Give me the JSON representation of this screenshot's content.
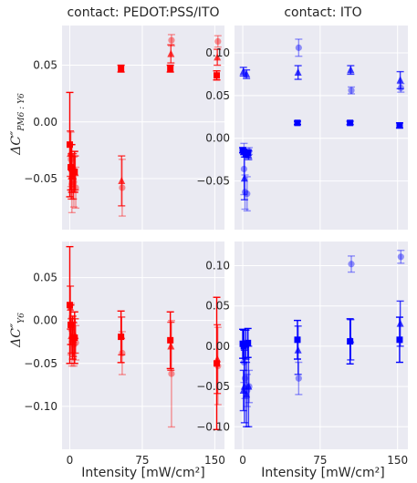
{
  "figure": {
    "col_titles": [
      "contact: PEDOT:PSS/ITO",
      "contact: ITO"
    ],
    "xlabel": "Intensity [mW/cm²]",
    "ylabels": [
      {
        "main": "ΔC″",
        "sub": "PM6 : Y6"
      },
      {
        "main": "ΔC″",
        "sub": "Y6"
      }
    ]
  },
  "chart_data": [
    {
      "type": "scatter",
      "title": "contact: PEDOT:PSS/ITO",
      "ylabel": "ΔC″ PM6:Y6",
      "xlabel": "",
      "color": "#ff0000",
      "xlim": [
        -8,
        160
      ],
      "ylim": [
        -0.095,
        0.085
      ],
      "xticks": [
        0,
        75,
        150
      ],
      "yticks": [
        -0.05,
        0.0,
        0.05
      ],
      "ytick_labels": [
        "−0.05",
        "0.00",
        "0.05"
      ],
      "grid": true,
      "series": [
        {
          "marker": "square",
          "alpha": 1.0,
          "points": [
            {
              "x": 0,
              "y": -0.02,
              "err": 0.046
            },
            {
              "x": 1,
              "y": -0.04,
              "err": 0.02
            },
            {
              "x": 2,
              "y": -0.041,
              "err": 0.021
            },
            {
              "x": 5,
              "y": -0.044,
              "err": 0.018
            },
            {
              "x": 53,
              "y": 0.047,
              "err": 0.003
            },
            {
              "x": 104,
              "y": 0.047,
              "err": 0.003
            },
            {
              "x": 152,
              "y": 0.041,
              "err": 0.004
            }
          ]
        },
        {
          "marker": "triangle",
          "alpha": 0.75,
          "points": [
            {
              "x": 0,
              "y": -0.028,
              "err": 0.02
            },
            {
              "x": 1,
              "y": -0.048,
              "err": 0.02
            },
            {
              "x": 3,
              "y": -0.048,
              "err": 0.02
            },
            {
              "x": 5,
              "y": -0.045,
              "err": 0.015
            },
            {
              "x": 53,
              "y": -0.052,
              "err": 0.022
            },
            {
              "x": 104,
              "y": 0.06,
              "err": 0.008
            },
            {
              "x": 152,
              "y": 0.057,
              "err": 0.007
            }
          ]
        },
        {
          "marker": "circle",
          "alpha": 0.4,
          "points": [
            {
              "x": 0,
              "y": -0.033,
              "err": 0.024
            },
            {
              "x": 1,
              "y": -0.055,
              "err": 0.025
            },
            {
              "x": 3,
              "y": -0.053,
              "err": 0.022
            },
            {
              "x": 5,
              "y": -0.058,
              "err": 0.018
            },
            {
              "x": 53,
              "y": -0.058,
              "err": 0.025
            },
            {
              "x": 104,
              "y": 0.072,
              "err": 0.005
            },
            {
              "x": 152,
              "y": 0.071,
              "err": 0.005
            }
          ]
        }
      ]
    },
    {
      "type": "scatter",
      "title": "contact: ITO",
      "ylabel": "",
      "xlabel": "",
      "color": "#0000ff",
      "xlim": [
        -8,
        160
      ],
      "ylim": [
        -0.107,
        0.132
      ],
      "xticks": [
        0,
        75,
        150
      ],
      "yticks": [
        -0.05,
        0.0,
        0.05,
        0.1
      ],
      "ytick_labels": [
        "−0.05",
        "0.00",
        "0.05",
        "0.10"
      ],
      "grid": true,
      "series": [
        {
          "marker": "square",
          "alpha": 1.0,
          "points": [
            {
              "x": 0,
              "y": -0.014,
              "err": 0.003
            },
            {
              "x": 1,
              "y": -0.016,
              "err": 0.003
            },
            {
              "x": 3,
              "y": -0.018,
              "err": 0.004
            },
            {
              "x": 5,
              "y": -0.017,
              "err": 0.003
            },
            {
              "x": 53,
              "y": 0.018,
              "err": 0.002
            },
            {
              "x": 104,
              "y": 0.018,
              "err": 0.002
            },
            {
              "x": 152,
              "y": 0.015,
              "err": 0.003
            }
          ]
        },
        {
          "marker": "triangle",
          "alpha": 0.75,
          "points": [
            {
              "x": 0,
              "y": 0.078,
              "err": 0.005
            },
            {
              "x": 1,
              "y": -0.047,
              "err": 0.025
            },
            {
              "x": 3,
              "y": 0.075,
              "err": 0.005
            },
            {
              "x": 5,
              "y": -0.02,
              "err": 0.005
            },
            {
              "x": 53,
              "y": 0.077,
              "err": 0.008
            },
            {
              "x": 104,
              "y": 0.08,
              "err": 0.005
            },
            {
              "x": 152,
              "y": 0.068,
              "err": 0.01
            }
          ]
        },
        {
          "marker": "circle",
          "alpha": 0.4,
          "points": [
            {
              "x": 0,
              "y": -0.036,
              "err": 0.03
            },
            {
              "x": 1,
              "y": -0.063,
              "err": 0.02
            },
            {
              "x": 3,
              "y": -0.065,
              "err": 0.02
            },
            {
              "x": 5,
              "y": -0.015,
              "err": 0.004
            },
            {
              "x": 53,
              "y": 0.106,
              "err": 0.01
            },
            {
              "x": 104,
              "y": 0.056,
              "err": 0.004
            },
            {
              "x": 152,
              "y": 0.059,
              "err": 0.005
            }
          ]
        }
      ]
    },
    {
      "type": "scatter",
      "title": "",
      "ylabel": "ΔC″ Y6",
      "xlabel": "Intensity [mW/cm²]",
      "color": "#ff0000",
      "xlim": [
        -8,
        160
      ],
      "ylim": [
        -0.15,
        0.092
      ],
      "xticks": [
        0,
        75,
        150
      ],
      "yticks": [
        -0.1,
        -0.05,
        0.0,
        0.05
      ],
      "ytick_labels": [
        "−0.10",
        "−0.05",
        "0.00",
        "0.05"
      ],
      "grid": true,
      "series": [
        {
          "marker": "square",
          "alpha": 1.0,
          "points": [
            {
              "x": 0,
              "y": 0.018,
              "err": 0.068
            },
            {
              "x": 1,
              "y": -0.005,
              "err": 0.023
            },
            {
              "x": 3,
              "y": -0.02,
              "err": 0.025
            },
            {
              "x": 5,
              "y": -0.02,
              "err": 0.03
            },
            {
              "x": 53,
              "y": -0.019,
              "err": 0.03
            },
            {
              "x": 104,
              "y": -0.023,
              "err": 0.033
            },
            {
              "x": 152,
              "y": -0.05,
              "err": 0.077
            }
          ]
        },
        {
          "marker": "triangle",
          "alpha": 0.75,
          "points": [
            {
              "x": 0,
              "y": 0.015,
              "err": 0.025
            },
            {
              "x": 1,
              "y": -0.018,
              "err": 0.02
            },
            {
              "x": 3,
              "y": -0.022,
              "err": 0.02
            },
            {
              "x": 5,
              "y": -0.018,
              "err": 0.02
            },
            {
              "x": 53,
              "y": -0.018,
              "err": 0.022
            },
            {
              "x": 104,
              "y": -0.03,
              "err": 0.028
            },
            {
              "x": 152,
              "y": -0.045,
              "err": 0.04
            }
          ]
        },
        {
          "marker": "circle",
          "alpha": 0.4,
          "points": [
            {
              "x": 0,
              "y": -0.01,
              "err": 0.03
            },
            {
              "x": 1,
              "y": -0.025,
              "err": 0.028
            },
            {
              "x": 3,
              "y": -0.028,
              "err": 0.025
            },
            {
              "x": 5,
              "y": -0.026,
              "err": 0.02
            },
            {
              "x": 53,
              "y": -0.038,
              "err": 0.025
            },
            {
              "x": 104,
              "y": -0.062,
              "err": 0.062
            },
            {
              "x": 152,
              "y": -0.053,
              "err": 0.045
            }
          ]
        }
      ]
    },
    {
      "type": "scatter",
      "title": "",
      "ylabel": "",
      "xlabel": "Intensity [mW/cm²]",
      "color": "#0000ff",
      "xlim": [
        -8,
        160
      ],
      "ylim": [
        -0.128,
        0.13
      ],
      "xticks": [
        0,
        75,
        150
      ],
      "yticks": [
        -0.1,
        -0.05,
        0.0,
        0.05,
        0.1
      ],
      "ytick_labels": [
        "−0.10",
        "−0.05",
        "0.00",
        "0.05",
        "0.10"
      ],
      "grid": true,
      "series": [
        {
          "marker": "square",
          "alpha": 1.0,
          "points": [
            {
              "x": 0,
              "y": 0.003,
              "err": 0.018
            },
            {
              "x": 1,
              "y": 0.0,
              "err": 0.02
            },
            {
              "x": 3,
              "y": 0.002,
              "err": 0.018
            },
            {
              "x": 5,
              "y": 0.004,
              "err": 0.018
            },
            {
              "x": 53,
              "y": 0.008,
              "err": 0.024
            },
            {
              "x": 104,
              "y": 0.006,
              "err": 0.028
            },
            {
              "x": 152,
              "y": 0.008,
              "err": 0.028
            }
          ]
        },
        {
          "marker": "triangle",
          "alpha": 0.75,
          "points": [
            {
              "x": 0,
              "y": -0.055,
              "err": 0.025
            },
            {
              "x": 1,
              "y": -0.05,
              "err": 0.045
            },
            {
              "x": 3,
              "y": -0.06,
              "err": 0.04
            },
            {
              "x": 5,
              "y": -0.05,
              "err": 0.05
            },
            {
              "x": 53,
              "y": -0.005,
              "err": 0.03
            },
            {
              "x": 104,
              "y": 0.008,
              "err": 0.025
            },
            {
              "x": 152,
              "y": 0.028,
              "err": 0.028
            }
          ]
        },
        {
          "marker": "circle",
          "alpha": 0.4,
          "points": [
            {
              "x": 0,
              "y": -0.02,
              "err": 0.025
            },
            {
              "x": 1,
              "y": -0.04,
              "err": 0.025
            },
            {
              "x": 3,
              "y": -0.055,
              "err": 0.02
            },
            {
              "x": 5,
              "y": -0.05,
              "err": 0.02
            },
            {
              "x": 53,
              "y": -0.04,
              "err": 0.02
            },
            {
              "x": 104,
              "y": 0.102,
              "err": 0.01
            },
            {
              "x": 152,
              "y": 0.111,
              "err": 0.008
            }
          ]
        }
      ]
    }
  ]
}
